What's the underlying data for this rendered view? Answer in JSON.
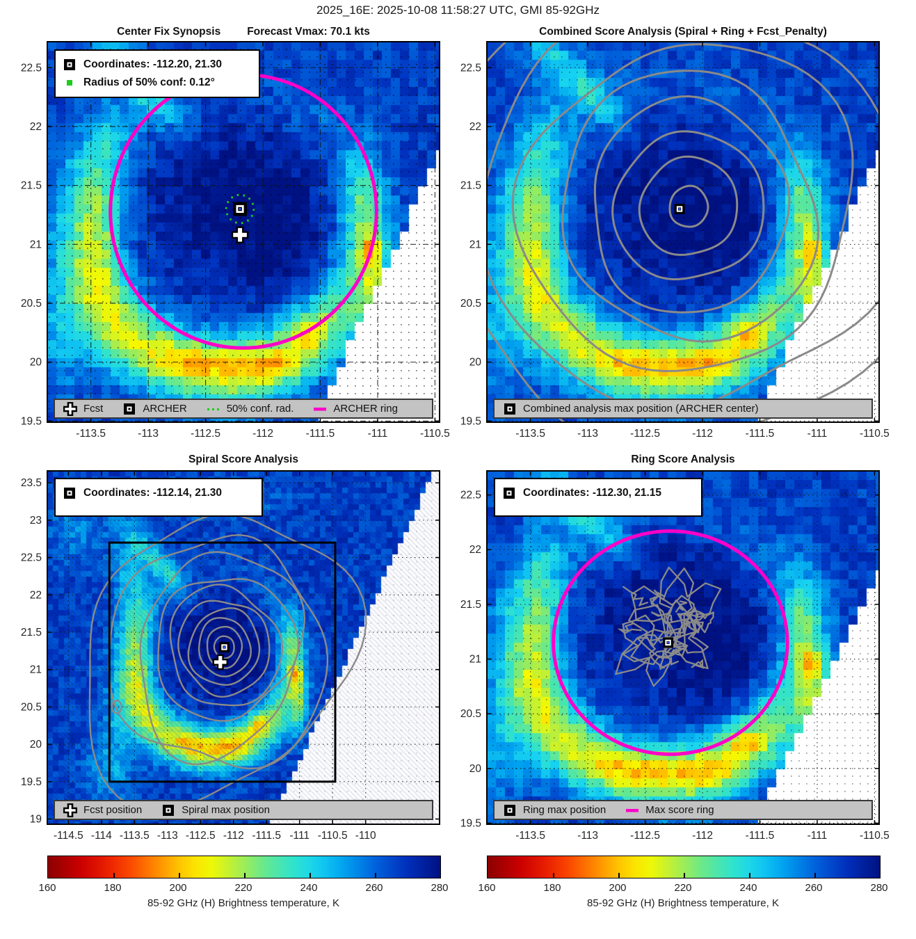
{
  "header": {
    "title": "2025_16E: 2025-10-08 11:58:27 UTC, GMI 85-92GHz"
  },
  "chart_data": {
    "type": "heatmap",
    "description_visible": "ARCHER tropical cyclone center-fix analysis, four map panels of 85-92 GHz brightness temperature with score contours",
    "colorbar": {
      "min": 160,
      "max": 280,
      "ticks": [
        160,
        180,
        200,
        220,
        240,
        260,
        280
      ],
      "label": "85-92 GHz (H) Brightness temperature, K"
    },
    "colors": {
      "magenta_ring": "#ff00c8",
      "green_conf": "#1ecc1e",
      "contour_gray": "#8a8a8a",
      "legend_strip_bg": "#c3c3c3",
      "nodata_white": "#ffffff"
    },
    "panels": [
      {
        "id": "center_fix",
        "title": "Center Fix Synopsis",
        "title_right": "Forecast Vmax: 70.1 kts",
        "xlim": [
          -113.88,
          -110.46
        ],
        "ylim": [
          19.49,
          22.72
        ],
        "xticks": [
          -113.5,
          -113,
          -112.5,
          -112,
          -111.5,
          -111,
          -110.5
        ],
        "yticks": [
          22.5,
          22,
          21.5,
          21,
          20.5,
          20,
          19.5
        ],
        "grid_style": "dashdot",
        "info_box": [
          {
            "icon": "archer-square",
            "text": "Coordinates: -112.20, 21.30"
          },
          {
            "icon": "green-square",
            "text": "Radius of 50% conf: 0.12°"
          }
        ],
        "legend": [
          {
            "icon": "fcst-cross",
            "text": "Fcst"
          },
          {
            "icon": "archer-square",
            "text": "ARCHER"
          },
          {
            "icon": "green-dotted-line",
            "text": "50% conf. rad."
          },
          {
            "icon": "magenta-line",
            "text": "ARCHER ring"
          }
        ],
        "markers": [
          {
            "type": "archer-square",
            "lon": -112.2,
            "lat": 21.3
          },
          {
            "type": "fcst-cross",
            "lon": -112.2,
            "lat": 21.08
          }
        ],
        "rings": [
          {
            "style": "magenta",
            "lon": -112.17,
            "lat": 21.28,
            "radius_deg": 1.16
          },
          {
            "style": "green-dotted",
            "lon": -112.2,
            "lat": 21.3,
            "radius_deg": 0.12
          }
        ]
      },
      {
        "id": "combined_score",
        "title": "Combined Score Analysis (Spiral + Ring + Fcst_Penalty)",
        "xlim": [
          -113.88,
          -110.46
        ],
        "ylim": [
          19.49,
          22.72
        ],
        "xticks": [
          -113.5,
          -113,
          -112.5,
          -112,
          -111.5,
          -111,
          -110.5
        ],
        "yticks": [
          22.5,
          22,
          21.5,
          21,
          20.5,
          20,
          19.5
        ],
        "grid_style": "dotted",
        "legend": [
          {
            "icon": "archer-square",
            "text": "Combined analysis max position (ARCHER center)"
          }
        ],
        "markers": [
          {
            "type": "archer-square",
            "lon": -112.2,
            "lat": 21.3
          }
        ],
        "contours": {
          "style": "nested-rings",
          "center": [
            -112.12,
            21.32
          ],
          "radii": [
            0.17,
            0.42,
            0.64,
            0.88,
            1.12,
            1.42,
            1.75,
            2.1
          ]
        }
      },
      {
        "id": "spiral_score",
        "title": "Spiral Score Analysis",
        "xlim": [
          -114.82,
          -108.88
        ],
        "ylim": [
          18.93,
          23.66
        ],
        "xticks": [
          -114.5,
          -114,
          -113.5,
          -113,
          -112.5,
          -112,
          -111.5,
          -111,
          -110.5,
          -110
        ],
        "yticks": [
          23.5,
          23,
          22.5,
          22,
          21.5,
          21,
          20.5,
          20,
          19.5,
          19
        ],
        "grid_style": "dotted",
        "info_box": [
          {
            "icon": "archer-square",
            "text": "Coordinates: -112.14, 21.30"
          }
        ],
        "legend": [
          {
            "icon": "fcst-cross",
            "text": "Fcst position"
          },
          {
            "icon": "archer-square",
            "text": "Spiral max position"
          }
        ],
        "analysis_box": {
          "lon1": -113.88,
          "lat1": 19.5,
          "lon2": -110.46,
          "lat2": 22.7
        },
        "markers": [
          {
            "type": "archer-square",
            "lon": -112.14,
            "lat": 21.3
          },
          {
            "type": "fcst-cross",
            "lon": -112.2,
            "lat": 21.1
          }
        ],
        "contours": {
          "style": "spiral-rings",
          "center": [
            -112.14,
            21.3
          ],
          "radii": [
            0.15,
            0.27,
            0.39,
            0.52,
            0.66,
            0.82,
            1.0,
            1.22,
            1.5,
            1.85
          ]
        }
      },
      {
        "id": "ring_score",
        "title": "Ring Score Analysis",
        "xlim": [
          -113.88,
          -110.46
        ],
        "ylim": [
          19.49,
          22.72
        ],
        "xticks": [
          -113.5,
          -113,
          -112.5,
          -112,
          -111.5,
          -111,
          -110.5
        ],
        "yticks": [
          22.5,
          22,
          21.5,
          21,
          20.5,
          20,
          19.5
        ],
        "grid_style": "dotted",
        "info_box": [
          {
            "icon": "archer-square",
            "text": "Coordinates: -112.30, 21.15"
          }
        ],
        "legend": [
          {
            "icon": "archer-square",
            "text": "Ring max position"
          },
          {
            "icon": "magenta-line",
            "text": "Max score ring"
          }
        ],
        "markers": [
          {
            "type": "archer-square",
            "lon": -112.3,
            "lat": 21.15
          }
        ],
        "rings": [
          {
            "style": "magenta",
            "lon": -112.28,
            "lat": 21.15,
            "radius_deg": 1.02
          }
        ],
        "contours": {
          "style": "squiggles",
          "center": [
            -112.25,
            21.18
          ],
          "radius": 0.6
        }
      }
    ]
  }
}
